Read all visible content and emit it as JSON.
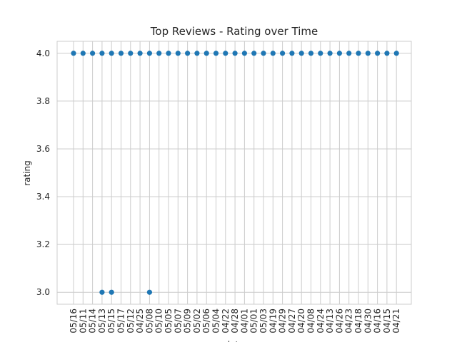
{
  "chart_data": {
    "type": "scatter",
    "title": "Top Reviews - Rating over Time",
    "xlabel": "date",
    "ylabel": "rating",
    "ylim": [
      2.95,
      4.05
    ],
    "yticks": [
      3.0,
      3.2,
      3.4,
      3.6,
      3.8,
      4.0
    ],
    "ytick_labels": [
      "3.0",
      "3.2",
      "3.4",
      "3.6",
      "3.8",
      "4.0"
    ],
    "grid": true,
    "marker_color": "#1f77b4",
    "categories": [
      "05/16",
      "05/11",
      "05/14",
      "05/13",
      "05/15",
      "05/17",
      "05/12",
      "04/25",
      "05/08",
      "05/10",
      "05/05",
      "05/07",
      "05/09",
      "05/02",
      "05/06",
      "05/04",
      "04/22",
      "04/28",
      "04/01",
      "05/01",
      "05/03",
      "04/19",
      "04/29",
      "04/27",
      "04/20",
      "04/08",
      "04/24",
      "04/13",
      "04/26",
      "04/23",
      "04/18",
      "04/30",
      "04/16",
      "04/15",
      "04/21"
    ],
    "points": [
      {
        "x": "05/16",
        "y": 4.0
      },
      {
        "x": "05/11",
        "y": 4.0
      },
      {
        "x": "05/14",
        "y": 4.0
      },
      {
        "x": "05/13",
        "y": 4.0
      },
      {
        "x": "05/13",
        "y": 3.0
      },
      {
        "x": "05/15",
        "y": 4.0
      },
      {
        "x": "05/15",
        "y": 3.0
      },
      {
        "x": "05/17",
        "y": 4.0
      },
      {
        "x": "05/12",
        "y": 4.0
      },
      {
        "x": "04/25",
        "y": 4.0
      },
      {
        "x": "05/08",
        "y": 4.0
      },
      {
        "x": "05/08",
        "y": 3.0
      },
      {
        "x": "05/10",
        "y": 4.0
      },
      {
        "x": "05/05",
        "y": 4.0
      },
      {
        "x": "05/07",
        "y": 4.0
      },
      {
        "x": "05/09",
        "y": 4.0
      },
      {
        "x": "05/02",
        "y": 4.0
      },
      {
        "x": "05/06",
        "y": 4.0
      },
      {
        "x": "05/04",
        "y": 4.0
      },
      {
        "x": "04/22",
        "y": 4.0
      },
      {
        "x": "04/28",
        "y": 4.0
      },
      {
        "x": "04/01",
        "y": 4.0
      },
      {
        "x": "05/01",
        "y": 4.0
      },
      {
        "x": "05/03",
        "y": 4.0
      },
      {
        "x": "04/19",
        "y": 4.0
      },
      {
        "x": "04/29",
        "y": 4.0
      },
      {
        "x": "04/27",
        "y": 4.0
      },
      {
        "x": "04/20",
        "y": 4.0
      },
      {
        "x": "04/08",
        "y": 4.0
      },
      {
        "x": "04/24",
        "y": 4.0
      },
      {
        "x": "04/13",
        "y": 4.0
      },
      {
        "x": "04/26",
        "y": 4.0
      },
      {
        "x": "04/23",
        "y": 4.0
      },
      {
        "x": "04/18",
        "y": 4.0
      },
      {
        "x": "04/30",
        "y": 4.0
      },
      {
        "x": "04/16",
        "y": 4.0
      },
      {
        "x": "04/15",
        "y": 4.0
      },
      {
        "x": "04/21",
        "y": 4.0
      }
    ]
  }
}
